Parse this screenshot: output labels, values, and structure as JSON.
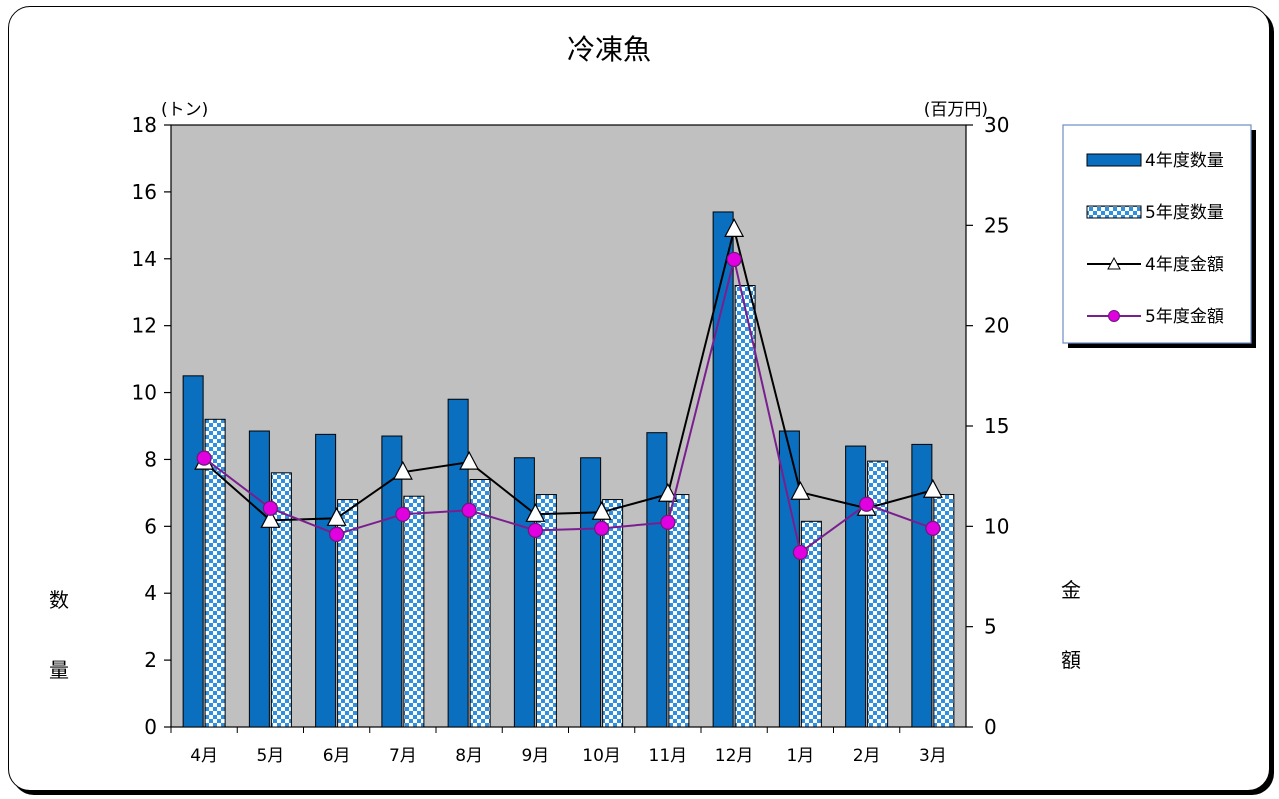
{
  "chart_data": {
    "type": "bar",
    "title": "冷凍魚",
    "categories": [
      "4月",
      "5月",
      "6月",
      "7月",
      "8月",
      "9月",
      "10月",
      "11月",
      "12月",
      "1月",
      "2月",
      "3月"
    ],
    "y_left": {
      "unit": "(トン)",
      "label_chars": [
        "数",
        "量"
      ],
      "ylim": [
        0,
        18
      ],
      "ticks": [
        0,
        2,
        4,
        6,
        8,
        10,
        12,
        14,
        16,
        18
      ]
    },
    "y_right": {
      "unit": "(百万円)",
      "label_chars": [
        "金",
        "額"
      ],
      "ylim": [
        0,
        30
      ],
      "ticks": [
        0,
        5,
        10,
        15,
        20,
        25,
        30
      ]
    },
    "series": [
      {
        "name": "4年度数量",
        "kind": "bar",
        "axis": "left",
        "color": "#0b6fc0",
        "values": [
          10.5,
          8.85,
          8.75,
          8.7,
          9.8,
          8.05,
          8.05,
          8.8,
          15.4,
          8.85,
          8.4,
          8.45
        ]
      },
      {
        "name": "5年度数量",
        "kind": "bar",
        "axis": "left",
        "color": "#2f8fe0",
        "values": [
          9.2,
          7.6,
          6.8,
          6.9,
          7.4,
          6.95,
          6.8,
          6.95,
          13.2,
          6.15,
          7.95,
          6.95
        ]
      },
      {
        "name": "4年度金額",
        "kind": "line",
        "axis": "right",
        "color": "#000000",
        "values": [
          13.2,
          10.3,
          10.4,
          12.7,
          13.2,
          10.6,
          10.7,
          11.6,
          24.8,
          11.7,
          10.9,
          11.8
        ]
      },
      {
        "name": "5年度金額",
        "kind": "line",
        "axis": "right",
        "color": "#7a1e8f",
        "values": [
          13.4,
          10.9,
          9.6,
          10.6,
          10.8,
          9.8,
          9.9,
          10.2,
          23.3,
          8.7,
          11.1,
          9.9
        ]
      }
    ],
    "grid": false,
    "legend_position": "right",
    "plot_background": "#c0c0c0"
  }
}
